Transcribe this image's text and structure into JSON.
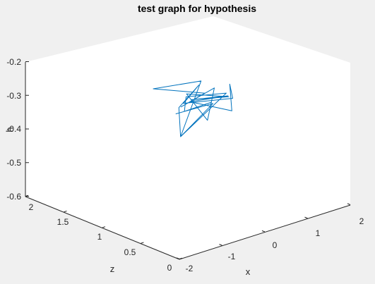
{
  "chart_data": {
    "type": "line3d",
    "title": "test graph for hypothesis",
    "xlabel": "x",
    "ylabel": "z",
    "zlabel": "h",
    "x_ticks": [
      "-2",
      "-1",
      "0",
      "1",
      "2"
    ],
    "z_ticks": [
      "0",
      "0.5",
      "1",
      "1.5",
      "2"
    ],
    "h_ticks": [
      "-0.6",
      "-0.5",
      "-0.4",
      "-0.3",
      "-0.2"
    ],
    "xlim": [
      -2,
      2
    ],
    "zlim": [
      0,
      2
    ],
    "hlim": [
      -0.6,
      -0.2
    ],
    "grid": false,
    "line_color": "#0072bd",
    "series": [
      {
        "points": [
          [
            -1.6,
            0.27,
            -0.21
          ],
          [
            1.4,
            1.45,
            -0.41
          ],
          [
            0.55,
            1.4,
            -0.47
          ],
          [
            0.6,
            1.45,
            -0.39
          ],
          [
            1.7,
            1.8,
            -0.4
          ],
          [
            0.8,
            1.5,
            -0.39
          ],
          [
            1.5,
            1.25,
            -0.38
          ],
          [
            1.7,
            1.4,
            -0.36
          ],
          [
            1.3,
            1.15,
            -0.4
          ],
          [
            0.5,
            1.25,
            -0.35
          ],
          [
            1.3,
            1.2,
            -0.36
          ],
          [
            0.8,
            1.4,
            -0.37
          ],
          [
            1.5,
            1.3,
            -0.38
          ],
          [
            0.6,
            1.35,
            -0.34
          ],
          [
            1.0,
            1.3,
            -0.43
          ],
          [
            1.7,
            1.6,
            -0.39
          ],
          [
            0.65,
            1.45,
            -0.39
          ],
          [
            1.3,
            1.5,
            -0.38
          ],
          [
            0.0,
            1.45,
            -0.31
          ],
          [
            1.75,
            1.8,
            -0.39
          ],
          [
            0.55,
            1.4,
            -0.47
          ],
          [
            1.8,
            1.5,
            -0.4
          ],
          [
            0.5,
            1.3,
            -0.34
          ],
          [
            0.55,
            1.35,
            -0.39
          ],
          [
            1.1,
            1.3,
            -0.38
          ]
        ]
      }
    ]
  }
}
